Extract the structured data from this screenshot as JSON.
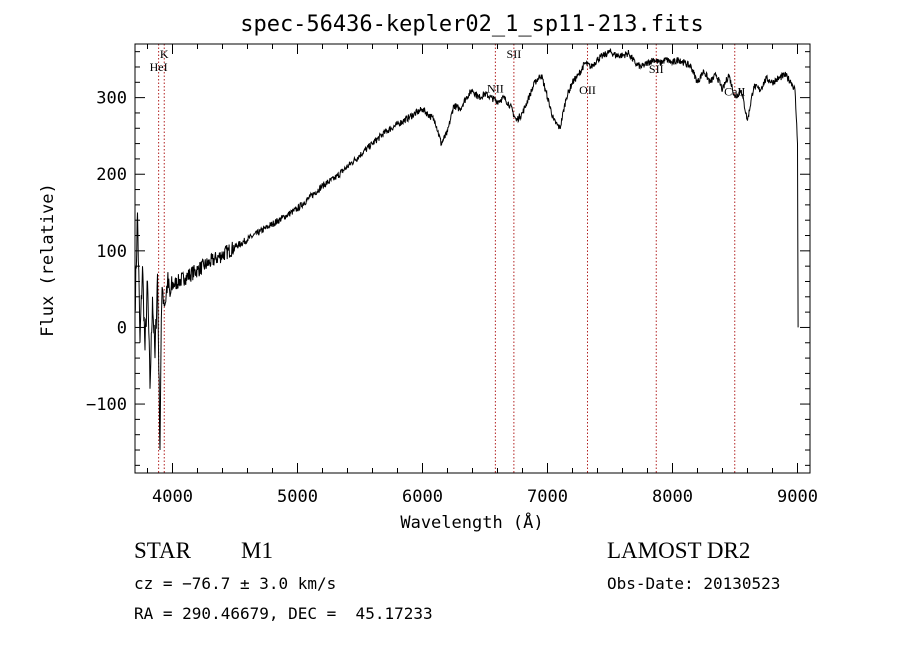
{
  "chart_data": {
    "type": "line",
    "title": "spec-56436-kepler02_1_sp11-213.fits",
    "xlabel": "Wavelength (Å)",
    "ylabel": "Flux (relative)",
    "xlim": [
      3700,
      9100
    ],
    "ylim": [
      -190,
      370
    ],
    "x_ticks": [
      4000,
      5000,
      6000,
      7000,
      8000,
      9000
    ],
    "x_tick_labels": [
      "4000",
      "5000",
      "6000",
      "7000",
      "8000",
      "9000"
    ],
    "y_ticks": [
      -100,
      0,
      100,
      200,
      300
    ],
    "y_tick_labels": [
      "−100",
      "0",
      "100",
      "200",
      "300"
    ],
    "x_minor_step": 200,
    "y_minor_step": 20,
    "grid": false,
    "series": [
      {
        "name": "flux",
        "x": [
          3700,
          3720,
          3740,
          3760,
          3780,
          3800,
          3820,
          3840,
          3860,
          3880,
          3900,
          3910,
          3920,
          3940,
          3960,
          3980,
          4000,
          4050,
          4100,
          4150,
          4200,
          4250,
          4300,
          4350,
          4400,
          4450,
          4500,
          4600,
          4700,
          4800,
          4900,
          5000,
          5100,
          5200,
          5300,
          5400,
          5500,
          5600,
          5700,
          5800,
          5900,
          6000,
          6100,
          6150,
          6200,
          6250,
          6300,
          6350,
          6400,
          6450,
          6500,
          6550,
          6600,
          6650,
          6700,
          6750,
          6800,
          6850,
          6900,
          6950,
          7000,
          7050,
          7100,
          7150,
          7200,
          7250,
          7300,
          7350,
          7400,
          7450,
          7500,
          7550,
          7600,
          7650,
          7700,
          7750,
          7800,
          7850,
          7900,
          7950,
          8000,
          8050,
          8100,
          8150,
          8200,
          8250,
          8300,
          8350,
          8400,
          8450,
          8500,
          8550,
          8600,
          8650,
          8700,
          8750,
          8800,
          8850,
          8900,
          8950,
          8980,
          9000,
          9005
        ],
        "y": [
          20,
          150,
          -20,
          80,
          -30,
          60,
          -80,
          40,
          -40,
          70,
          -160,
          10,
          50,
          30,
          60,
          40,
          55,
          60,
          65,
          70,
          75,
          80,
          85,
          90,
          95,
          100,
          105,
          115,
          125,
          135,
          145,
          155,
          170,
          185,
          195,
          210,
          225,
          240,
          255,
          265,
          275,
          285,
          270,
          240,
          255,
          290,
          285,
          300,
          310,
          300,
          305,
          300,
          295,
          300,
          290,
          270,
          280,
          300,
          320,
          330,
          300,
          270,
          260,
          300,
          320,
          330,
          345,
          340,
          350,
          355,
          360,
          355,
          355,
          358,
          345,
          340,
          345,
          350,
          345,
          350,
          345,
          350,
          345,
          340,
          320,
          335,
          320,
          330,
          310,
          330,
          300,
          310,
          270,
          315,
          310,
          325,
          320,
          325,
          330,
          320,
          310,
          240,
          0
        ]
      }
    ],
    "lines": [
      {
        "label": "K",
        "wavelength": 3934,
        "label_flux": 352
      },
      {
        "label": "HeI",
        "wavelength": 3889,
        "label_flux": 335
      },
      {
        "label": "NII",
        "wavelength": 6583,
        "label_flux": 307
      },
      {
        "label": "SII",
        "wavelength": 6731,
        "label_flux": 352
      },
      {
        "label": "OII",
        "wavelength": 7320,
        "label_flux": 305
      },
      {
        "label": "SII",
        "wavelength": 7870,
        "label_flux": 332
      },
      {
        "label": "CaII",
        "wavelength": 8498,
        "label_flux": 303
      }
    ],
    "colors": {
      "spectrum": "#000000",
      "line_marker": "#b22222",
      "axes": "#000000",
      "background": "#ffffff"
    }
  },
  "info": {
    "object_class": "STAR",
    "subclass": "M1",
    "survey": "LAMOST DR2",
    "cz": "cz = −76.7 ± 3.0 km/s",
    "obs_date": "Obs-Date: 20130523",
    "coords": "RA = 290.46679, DEC =  45.17233"
  }
}
